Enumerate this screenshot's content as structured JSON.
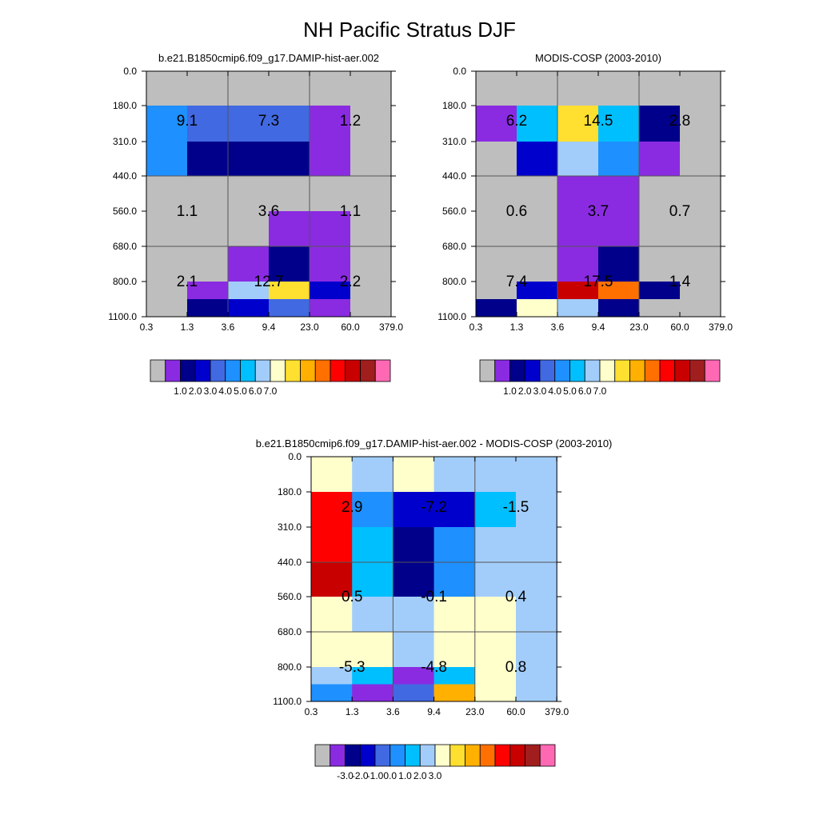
{
  "figure": {
    "title": "NH Pacific Stratus DJF"
  },
  "palette": [
    "#bebebe",
    "#8a2be2",
    "#00008b",
    "#0000cd",
    "#4169e1",
    "#1e90ff",
    "#00bfff",
    "#a2cdfa",
    "#ffffcc",
    "#ffe030",
    "#ffb000",
    "#ff7000",
    "#ff0000",
    "#c80000",
    "#a01e1e",
    "#ff69b4"
  ],
  "chart_data": [
    {
      "type": "heatmap",
      "title": "b.e21.B1850cmip6.f09_g17.DAMIP-hist-aer.002",
      "x_ticks": [
        "0.3",
        "1.3",
        "3.6",
        "9.4",
        "23.0",
        "60.0",
        "379.0"
      ],
      "y_ticks": [
        "0.0",
        "180.0",
        "310.0",
        "440.0",
        "560.0",
        "680.0",
        "800.0",
        "1100.0"
      ],
      "grid_colors": [
        [
          0,
          0,
          0,
          0,
          0,
          0
        ],
        [
          5,
          4,
          4,
          4,
          1,
          0
        ],
        [
          5,
          2,
          2,
          2,
          1,
          0
        ],
        [
          0,
          0,
          0,
          0,
          0,
          0
        ],
        [
          0,
          0,
          0,
          1,
          1,
          0
        ],
        [
          0,
          0,
          1,
          2,
          1,
          0
        ],
        [
          0,
          1,
          7,
          9,
          3,
          0
        ],
        [
          0,
          2,
          3,
          4,
          1,
          0
        ]
      ],
      "block_values": [
        [
          "9.1",
          "7.3",
          "1.2"
        ],
        [
          "1.1",
          "3.6",
          "1.1"
        ],
        [
          "2.1",
          "12.7",
          "2.2"
        ]
      ],
      "colorbar_labels": [
        "1.0",
        "2.0",
        "3.0",
        "4.0",
        "5.0",
        "6.0",
        "7.0"
      ]
    },
    {
      "type": "heatmap",
      "title": "MODIS-COSP (2003-2010)",
      "x_ticks": [
        "0.3",
        "1.3",
        "3.6",
        "9.4",
        "23.0",
        "60.0",
        "379.0"
      ],
      "y_ticks": [
        "0.0",
        "180.0",
        "310.0",
        "440.0",
        "560.0",
        "680.0",
        "800.0",
        "1100.0"
      ],
      "grid_colors": [
        [
          0,
          0,
          0,
          0,
          0,
          0
        ],
        [
          1,
          6,
          9,
          6,
          2,
          0
        ],
        [
          0,
          3,
          7,
          5,
          1,
          0
        ],
        [
          0,
          0,
          1,
          1,
          0,
          0
        ],
        [
          0,
          0,
          1,
          1,
          0,
          0
        ],
        [
          0,
          0,
          1,
          2,
          0,
          0
        ],
        [
          0,
          3,
          13,
          11,
          2,
          0
        ],
        [
          2,
          8,
          7,
          2,
          0,
          0
        ]
      ],
      "block_values": [
        [
          "6.2",
          "14.5",
          "2.8"
        ],
        [
          "0.6",
          "3.7",
          "0.7"
        ],
        [
          "7.4",
          "17.5",
          "1.4"
        ]
      ],
      "colorbar_labels": [
        "1.0",
        "2.0",
        "3.0",
        "4.0",
        "5.0",
        "6.0",
        "7.0"
      ]
    },
    {
      "type": "heatmap",
      "title": "b.e21.B1850cmip6.f09_g17.DAMIP-hist-aer.002 - MODIS-COSP (2003-2010)",
      "x_ticks": [
        "0.3",
        "1.3",
        "3.6",
        "9.4",
        "23.0",
        "60.0",
        "379.0"
      ],
      "y_ticks": [
        "0.0",
        "180.0",
        "310.0",
        "440.0",
        "560.0",
        "680.0",
        "800.0",
        "1100.0"
      ],
      "grid_colors": [
        [
          8,
          7,
          8,
          7,
          7,
          7
        ],
        [
          12,
          5,
          3,
          3,
          6,
          7
        ],
        [
          12,
          6,
          2,
          5,
          7,
          7
        ],
        [
          13,
          6,
          2,
          5,
          7,
          7
        ],
        [
          8,
          7,
          7,
          8,
          8,
          7
        ],
        [
          8,
          8,
          7,
          8,
          8,
          7
        ],
        [
          7,
          6,
          1,
          6,
          8,
          7
        ],
        [
          5,
          1,
          4,
          10,
          8,
          7
        ]
      ],
      "block_values": [
        [
          "2.9",
          "-7.2",
          "-1.5"
        ],
        [
          "0.5",
          "-0.1",
          "0.4"
        ],
        [
          "-5.3",
          "-4.8",
          "0.8"
        ]
      ],
      "colorbar_labels": [
        "-3.0",
        "-2.0",
        "-1.0",
        "0.0",
        "1.0",
        "2.0",
        "3.0"
      ]
    }
  ]
}
